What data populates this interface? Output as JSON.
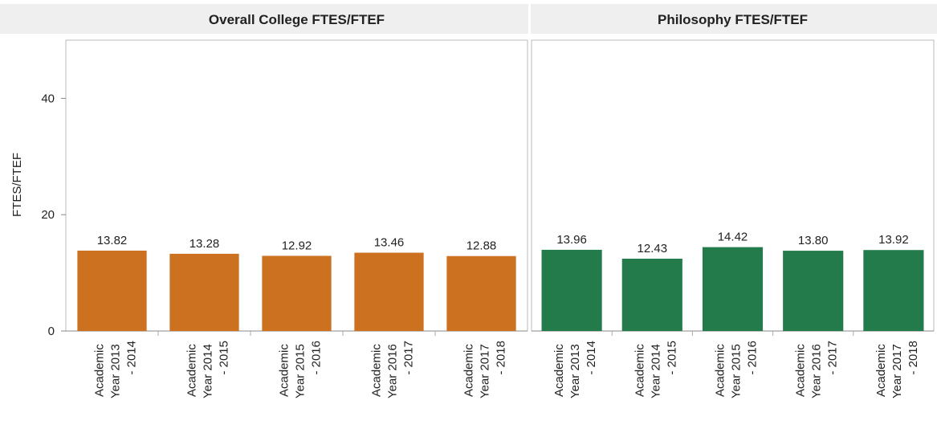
{
  "chart_data": [
    {
      "type": "bar",
      "title": "Overall College FTES/FTEF",
      "ylabel": "FTES/FTEF",
      "categories": [
        "Academic Year 2013 - 2014",
        "Academic Year 2014 - 2015",
        "Academic Year 2015 - 2016",
        "Academic Year 2016 - 2017",
        "Academic Year 2017 - 2018"
      ],
      "values": [
        13.82,
        13.28,
        12.92,
        13.46,
        12.88
      ],
      "value_labels": [
        "13.82",
        "13.28",
        "12.92",
        "13.46",
        "12.88"
      ],
      "color": "#cc711f",
      "ylim": [
        0,
        50
      ],
      "yticks": [
        0,
        20,
        40
      ]
    },
    {
      "type": "bar",
      "title": "Philosophy FTES/FTEF",
      "categories": [
        "Academic Year 2013 - 2014",
        "Academic Year 2014 - 2015",
        "Academic Year 2015 - 2016",
        "Academic Year 2016 - 2017",
        "Academic Year 2017 - 2018"
      ],
      "values": [
        13.96,
        12.43,
        14.42,
        13.8,
        13.92
      ],
      "value_labels": [
        "13.96",
        "12.43",
        "14.42",
        "13.80",
        "13.92"
      ],
      "color": "#237a4b",
      "ylim": [
        0,
        50
      ]
    }
  ]
}
